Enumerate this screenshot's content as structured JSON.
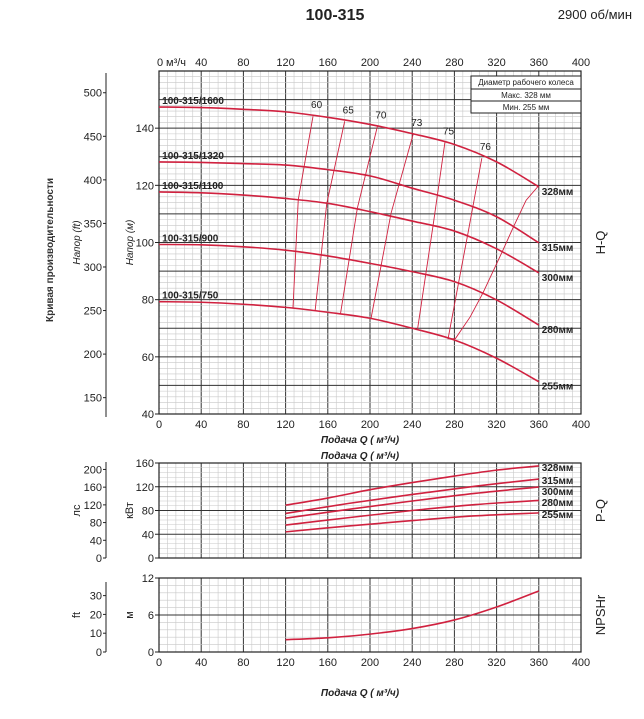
{
  "header": {
    "title": "100-315",
    "speed": "2900 об/мин"
  },
  "side_label": "Кривая производительности",
  "colors": {
    "curve": "#d0213f",
    "grid_major": "#333333",
    "grid_minor": "#c8c8c8"
  },
  "chart_data": [
    {
      "type": "line",
      "panel": "H-Q",
      "xlabel": "Подача Q ( м³/ч)",
      "x_unit_top": "м³/ч",
      "ylabel": "Напор (м)",
      "y2label": "Напор (ft)",
      "xlim": [
        0,
        400
      ],
      "ylim": [
        40,
        160
      ],
      "x_ticks": [
        0,
        40,
        80,
        120,
        160,
        200,
        240,
        280,
        320,
        360,
        400
      ],
      "y_ticks": [
        40,
        60,
        80,
        100,
        120,
        140
      ],
      "y2_ticks": [
        150,
        200,
        250,
        300,
        350,
        400,
        450,
        500
      ],
      "grid": true,
      "legend": {
        "title": "Диаметр рабочего колеса",
        "max": "Макс. 328  мм",
        "min": "Мин.  255  мм"
      },
      "series": [
        {
          "name": "100-315/1600",
          "end_label": "328мм",
          "points": [
            [
              0,
              147.4
            ],
            [
              40,
              147.2
            ],
            [
              80,
              146.6
            ],
            [
              120,
              145.7
            ],
            [
              160,
              143.8
            ],
            [
              200,
              141.3
            ],
            [
              240,
              138.1
            ],
            [
              280,
              134.3
            ],
            [
              320,
              128.2
            ],
            [
              360,
              119.5
            ]
          ]
        },
        {
          "name": "100-315/1320",
          "end_label": "315мм",
          "points": [
            [
              0,
              128.2
            ],
            [
              40,
              128
            ],
            [
              80,
              127.6
            ],
            [
              120,
              127.1
            ],
            [
              160,
              125.5
            ],
            [
              200,
              123.3
            ],
            [
              240,
              119
            ],
            [
              280,
              114.8
            ],
            [
              320,
              109
            ],
            [
              360,
              99.9
            ]
          ]
        },
        {
          "name": "100-315/1100",
          "end_label": "300мм",
          "points": [
            [
              0,
              117.7
            ],
            [
              40,
              117.4
            ],
            [
              80,
              116.6
            ],
            [
              120,
              115.4
            ],
            [
              160,
              113.7
            ],
            [
              200,
              110.8
            ],
            [
              240,
              107.5
            ],
            [
              280,
              104
            ],
            [
              320,
              97.8
            ],
            [
              360,
              89.4
            ]
          ]
        },
        {
          "name": "100-315/900",
          "end_label": "280мм",
          "points": [
            [
              0,
              99.3
            ],
            [
              40,
              99.2
            ],
            [
              80,
              98.5
            ],
            [
              120,
              97.3
            ],
            [
              160,
              95.3
            ],
            [
              200,
              92.7
            ],
            [
              240,
              89.8
            ],
            [
              280,
              86.3
            ],
            [
              320,
              79.9
            ],
            [
              360,
              71.1
            ]
          ]
        },
        {
          "name": "100-315/750",
          "end_label": "255мм",
          "points": [
            [
              0,
              79.3
            ],
            [
              40,
              79.1
            ],
            [
              80,
              78.4
            ],
            [
              120,
              77.3
            ],
            [
              160,
              75.6
            ],
            [
              200,
              73.5
            ],
            [
              240,
              70
            ],
            [
              280,
              65.9
            ],
            [
              320,
              59.5
            ],
            [
              360,
              51.3
            ]
          ]
        }
      ],
      "efficiency": [
        {
          "label": "60",
          "points": [
            [
              146,
              144.2
            ],
            [
              132,
              115
            ],
            [
              127,
              77.1
            ]
          ]
        },
        {
          "label": "65",
          "points": [
            [
              176,
              142.4
            ],
            [
              159,
              113.6
            ],
            [
              148,
              76.2
            ]
          ]
        },
        {
          "label": "70",
          "points": [
            [
              207,
              140.6
            ],
            [
              188,
              112
            ],
            [
              172,
              75
            ]
          ]
        },
        {
          "label": "73",
          "points": [
            [
              241,
              138
            ],
            [
              220,
              110.3
            ],
            [
              201,
              73.5
            ]
          ]
        },
        {
          "label": "75",
          "points": [
            [
              271,
              135
            ],
            [
              260,
              106.5
            ],
            [
              245,
              69.5
            ]
          ]
        },
        {
          "label": "76",
          "points": [
            [
              306,
              129.5
            ],
            [
              293,
              103.5
            ],
            [
              284,
              86
            ],
            [
              274,
              66.3
            ],
            [
              281,
              66.4
            ],
            [
              295,
              74
            ],
            [
              307,
              82.3
            ],
            [
              326,
              97.3
            ],
            [
              336,
              105.5
            ],
            [
              348,
              114.8
            ],
            [
              359,
              119.5
            ]
          ]
        }
      ]
    },
    {
      "type": "line",
      "panel": "P-Q",
      "xlabel": "Подача Q ( м³/ч)",
      "ylabel": "кВт",
      "y2label": "лс",
      "xlim": [
        0,
        400
      ],
      "ylim": [
        0,
        160
      ],
      "y_ticks": [
        0,
        40,
        80,
        120,
        160
      ],
      "y2_ticks": [
        0,
        40,
        80,
        120,
        160,
        200
      ],
      "grid": true,
      "series": [
        {
          "end_label": "328мм",
          "points": [
            [
              120,
              89
            ],
            [
              160,
              101
            ],
            [
              200,
              115
            ],
            [
              240,
              127
            ],
            [
              280,
              138
            ],
            [
              320,
              148
            ],
            [
              360,
              155
            ]
          ]
        },
        {
          "end_label": "315мм",
          "points": [
            [
              120,
              75
            ],
            [
              180,
              92
            ],
            [
              240,
              107
            ],
            [
              300,
              121
            ],
            [
              360,
              133
            ]
          ]
        },
        {
          "end_label": "300мм",
          "points": [
            [
              120,
              67
            ],
            [
              180,
              82
            ],
            [
              240,
              96
            ],
            [
              300,
              109
            ],
            [
              360,
              119.5
            ]
          ]
        },
        {
          "end_label": "280мм",
          "points": [
            [
              120,
              55.5
            ],
            [
              180,
              68
            ],
            [
              240,
              80
            ],
            [
              300,
              90
            ],
            [
              360,
              97
            ]
          ]
        },
        {
          "end_label": "255мм",
          "points": [
            [
              120,
              44
            ],
            [
              180,
              54
            ],
            [
              240,
              63
            ],
            [
              300,
              71
            ],
            [
              360,
              76
            ]
          ]
        }
      ]
    },
    {
      "type": "line",
      "panel": "NPSHr",
      "xlabel": "Подача Q ( м³/ч)",
      "ylabel": "м",
      "y2label": "ft",
      "xlim": [
        0,
        400
      ],
      "ylim": [
        0,
        12
      ],
      "x_ticks": [
        0,
        40,
        80,
        120,
        160,
        200,
        240,
        280,
        320,
        360,
        400
      ],
      "y_ticks": [
        0,
        6,
        12
      ],
      "y2_ticks": [
        0,
        10,
        20,
        30
      ],
      "grid": true,
      "series": [
        {
          "points": [
            [
              120,
              2.0
            ],
            [
              160,
              2.3
            ],
            [
              200,
              2.9
            ],
            [
              240,
              3.8
            ],
            [
              280,
              5.2
            ],
            [
              320,
              7.3
            ],
            [
              360,
              9.9
            ]
          ]
        }
      ]
    }
  ]
}
